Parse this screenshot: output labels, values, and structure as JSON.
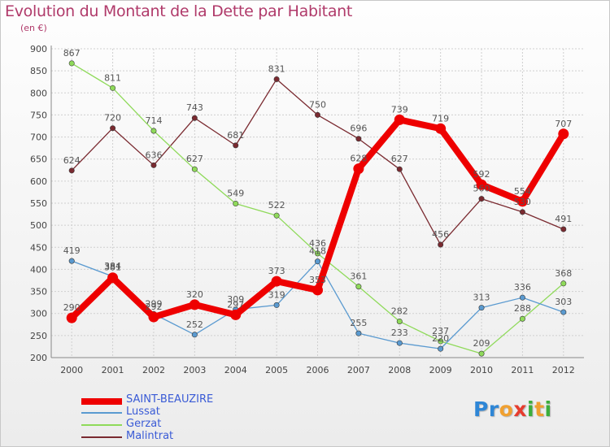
{
  "title": "Evolution du Montant de la Dette par Habitant",
  "subtitle": "(en €)",
  "logo": {
    "text": "Proxiti",
    "letters": [
      "P",
      "r",
      "o",
      "x",
      "i",
      "t",
      "i"
    ],
    "colors": [
      "#2e86d6",
      "#2e86d6",
      "#f0a030",
      "#e63c2e",
      "#3cae3c",
      "#f0a030",
      "#3cae3c"
    ]
  },
  "chart_data": {
    "type": "line",
    "title": "Evolution du Montant de la Dette par Habitant",
    "ylabel": "(en €)",
    "xlabel": "",
    "ylim": [
      200,
      900
    ],
    "yticks": [
      200,
      250,
      300,
      350,
      400,
      450,
      500,
      550,
      600,
      650,
      700,
      750,
      800,
      850,
      900
    ],
    "categories": [
      "2000",
      "2001",
      "2002",
      "2003",
      "2004",
      "2005",
      "2006",
      "2007",
      "2008",
      "2009",
      "2010",
      "2011",
      "2012"
    ],
    "series": [
      {
        "name": "SAINT-BEAUZIRE",
        "color": "#ee0000",
        "values": [
          290,
          381,
          292,
          320,
          297,
          373,
          353,
          628,
          739,
          719,
          592,
          554,
          707
        ],
        "labels": [
          "290",
          "381",
          "292",
          "320",
          "297",
          "373",
          "353",
          "628",
          "739",
          "719",
          "592",
          "554",
          "707"
        ]
      },
      {
        "name": "Lussat",
        "color": "#5a9ad0",
        "values": [
          419,
          384,
          299,
          252,
          309,
          319,
          418,
          255,
          233,
          220,
          313,
          336,
          303
        ],
        "labels": [
          "419",
          "384",
          "299",
          "252",
          "309",
          "319",
          "418",
          "255",
          "233",
          "220",
          "313",
          "336",
          "303"
        ]
      },
      {
        "name": "Gerzat",
        "color": "#8fda5a",
        "values": [
          867,
          811,
          714,
          627,
          549,
          522,
          436,
          361,
          282,
          237,
          209,
          288,
          368
        ],
        "labels": [
          "867",
          "811",
          "714",
          "627",
          "549",
          "522",
          "436",
          "361",
          "282",
          "237",
          "209",
          "288",
          "368"
        ]
      },
      {
        "name": "Malintrat",
        "color": "#7a2a30",
        "values": [
          624,
          720,
          636,
          743,
          681,
          831,
          750,
          696,
          627,
          456,
          560,
          530,
          491
        ],
        "labels": [
          "624",
          "720",
          "636",
          "743",
          "681",
          "831",
          "750",
          "696",
          "627",
          "456",
          "560",
          "530",
          "491"
        ]
      }
    ],
    "grid": true,
    "legend": "bottom-left"
  }
}
